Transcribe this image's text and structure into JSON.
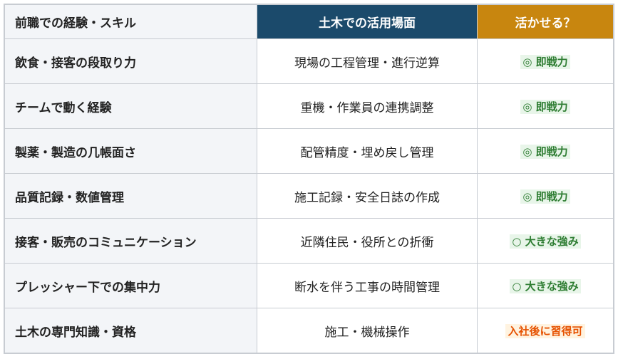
{
  "headers": [
    "前職での経験・スキル",
    "土木での活用場面",
    "活かせる？"
  ],
  "colors": {
    "header_blue": "#1b4a6b",
    "header_gold": "#c8860f",
    "green": "#2e7d32",
    "orange": "#e65100"
  },
  "rows": [
    {
      "skill": "飲食・接客の段取り力",
      "use": "現場の工程管理・進行逆算",
      "rating": "◎ 即戦力",
      "tone": "green"
    },
    {
      "skill": "チームで動く経験",
      "use": "重機・作業員の連携調整",
      "rating": "◎ 即戦力",
      "tone": "green"
    },
    {
      "skill": "製薬・製造の几帳面さ",
      "use": "配管精度・埋め戻し管理",
      "rating": "◎ 即戦力",
      "tone": "green"
    },
    {
      "skill": "品質記録・数値管理",
      "use": "施工記録・安全日誌の作成",
      "rating": "◎ 即戦力",
      "tone": "green"
    },
    {
      "skill": "接客・販売のコミュニケーション",
      "use": "近隣住民・役所との折衝",
      "rating": "○ 大きな強み",
      "tone": "green"
    },
    {
      "skill": "プレッシャー下での集中力",
      "use": "断水を伴う工事の時間管理",
      "rating": "○ 大きな強み",
      "tone": "green"
    },
    {
      "skill": "土木の専門知識・資格",
      "use": "施工・機械操作",
      "rating": "入社後に習得可",
      "tone": "orange"
    }
  ]
}
